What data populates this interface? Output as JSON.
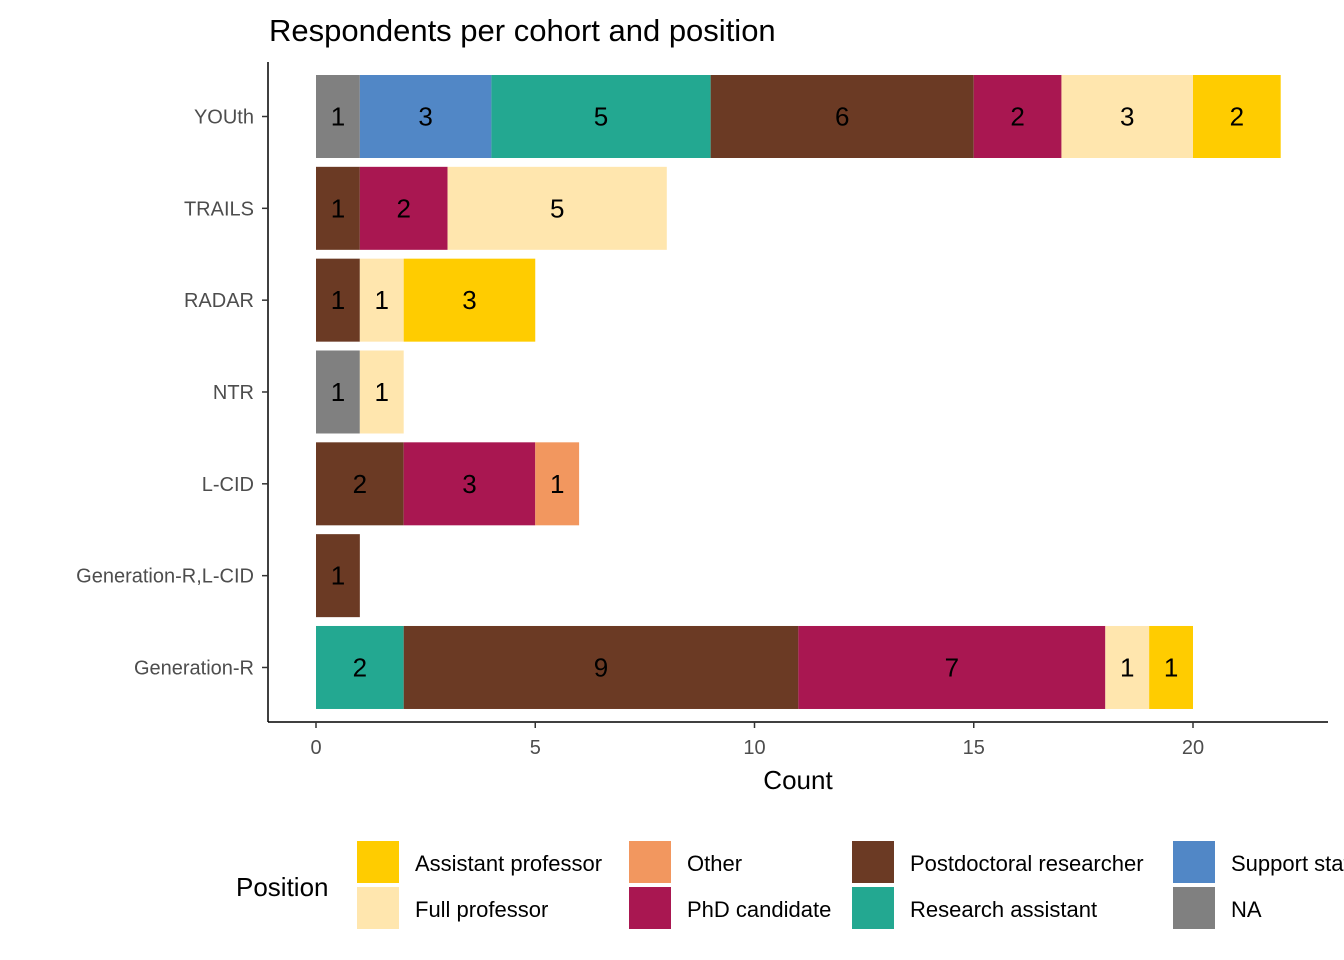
{
  "chart_data": {
    "type": "bar",
    "orientation": "horizontal",
    "stacked": true,
    "title": "Respondents per cohort and position",
    "xlabel": "Count",
    "ylabel": "",
    "xlim": [
      0,
      22
    ],
    "x_ticks": [
      0,
      5,
      10,
      15,
      20
    ],
    "grid": false,
    "legend_position": "bottom",
    "legend_title": "Position",
    "categories": [
      "YOUth",
      "TRAILS",
      "RADAR",
      "NTR",
      "L-CID",
      "Generation-R,L-CID",
      "Generation-R"
    ],
    "series": [
      {
        "name": "NA",
        "color": "#808080",
        "values": [
          1,
          0,
          0,
          1,
          0,
          0,
          0
        ]
      },
      {
        "name": "Support staff",
        "color": "#5187C6",
        "values": [
          3,
          0,
          0,
          0,
          0,
          0,
          0
        ]
      },
      {
        "name": "Research assistant",
        "color": "#23A891",
        "values": [
          5,
          0,
          0,
          0,
          0,
          0,
          2
        ]
      },
      {
        "name": "Postdoctoral researcher",
        "color": "#6B3A24",
        "values": [
          6,
          1,
          1,
          0,
          2,
          1,
          9
        ]
      },
      {
        "name": "PhD candidate",
        "color": "#A91751",
        "values": [
          2,
          2,
          0,
          0,
          3,
          0,
          7
        ]
      },
      {
        "name": "Other",
        "color": "#F2975F",
        "values": [
          0,
          0,
          0,
          0,
          1,
          0,
          0
        ]
      },
      {
        "name": "Full professor",
        "color": "#FFE6AE",
        "values": [
          3,
          5,
          1,
          1,
          0,
          0,
          1
        ]
      },
      {
        "name": "Assistant professor",
        "color": "#FFCC00",
        "values": [
          2,
          0,
          3,
          0,
          0,
          0,
          1
        ]
      }
    ],
    "legend": [
      {
        "label": "Assistant professor",
        "color": "#FFCC00"
      },
      {
        "label": "Full professor",
        "color": "#FFE6AE"
      },
      {
        "label": "Other",
        "color": "#F2975F"
      },
      {
        "label": "PhD candidate",
        "color": "#A91751"
      },
      {
        "label": "Postdoctoral researcher",
        "color": "#6B3A24"
      },
      {
        "label": "Research assistant",
        "color": "#23A891"
      },
      {
        "label": "Support staff",
        "color": "#5187C6"
      },
      {
        "label": "NA",
        "color": "#808080"
      }
    ]
  }
}
